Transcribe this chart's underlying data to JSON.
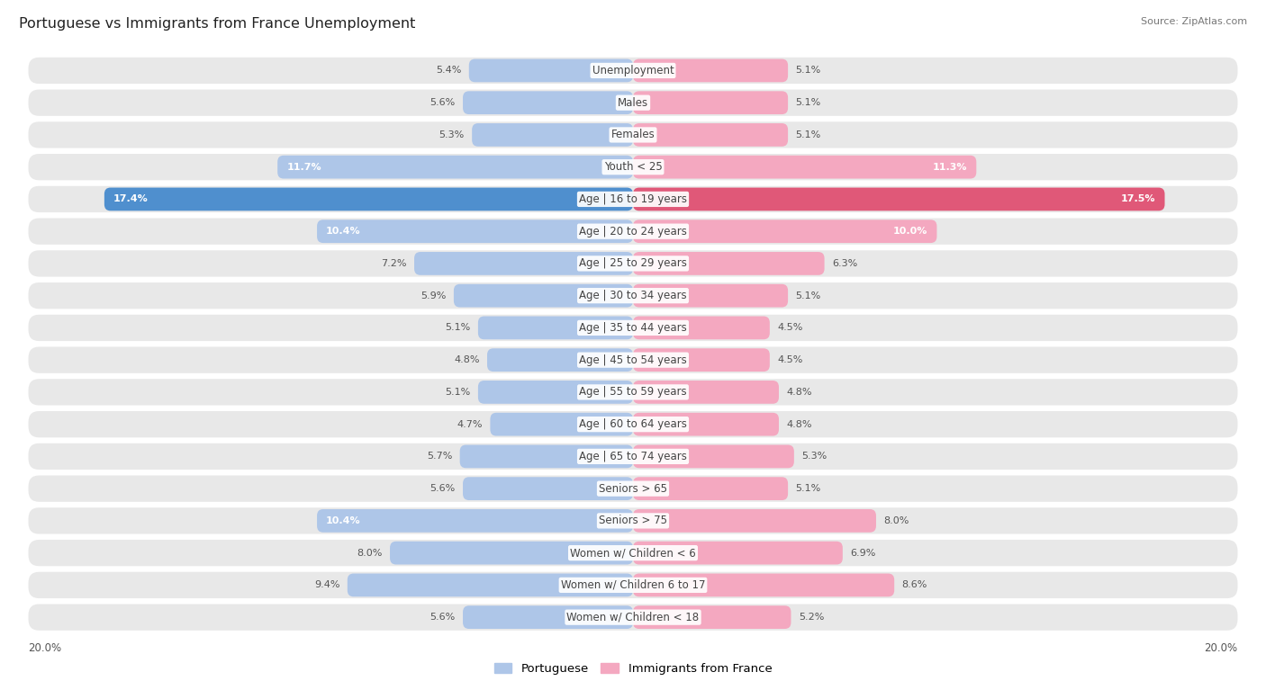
{
  "title": "Portuguese vs Immigrants from France Unemployment",
  "source": "Source: ZipAtlas.com",
  "categories": [
    "Unemployment",
    "Males",
    "Females",
    "Youth < 25",
    "Age | 16 to 19 years",
    "Age | 20 to 24 years",
    "Age | 25 to 29 years",
    "Age | 30 to 34 years",
    "Age | 35 to 44 years",
    "Age | 45 to 54 years",
    "Age | 55 to 59 years",
    "Age | 60 to 64 years",
    "Age | 65 to 74 years",
    "Seniors > 65",
    "Seniors > 75",
    "Women w/ Children < 6",
    "Women w/ Children 6 to 17",
    "Women w/ Children < 18"
  ],
  "portuguese": [
    5.4,
    5.6,
    5.3,
    11.7,
    17.4,
    10.4,
    7.2,
    5.9,
    5.1,
    4.8,
    5.1,
    4.7,
    5.7,
    5.6,
    10.4,
    8.0,
    9.4,
    5.6
  ],
  "immigrants": [
    5.1,
    5.1,
    5.1,
    11.3,
    17.5,
    10.0,
    6.3,
    5.1,
    4.5,
    4.5,
    4.8,
    4.8,
    5.3,
    5.1,
    8.0,
    6.9,
    8.6,
    5.2
  ],
  "portuguese_color": "#aec6e8",
  "immigrants_color": "#f4a8c0",
  "highlight_blue": "#4f8fce",
  "highlight_pink": "#e05878",
  "row_bg": "#e8e8e8",
  "axis_max": 20.0,
  "label_fontsize": 8.5,
  "value_fontsize": 8.0,
  "title_fontsize": 11.5
}
